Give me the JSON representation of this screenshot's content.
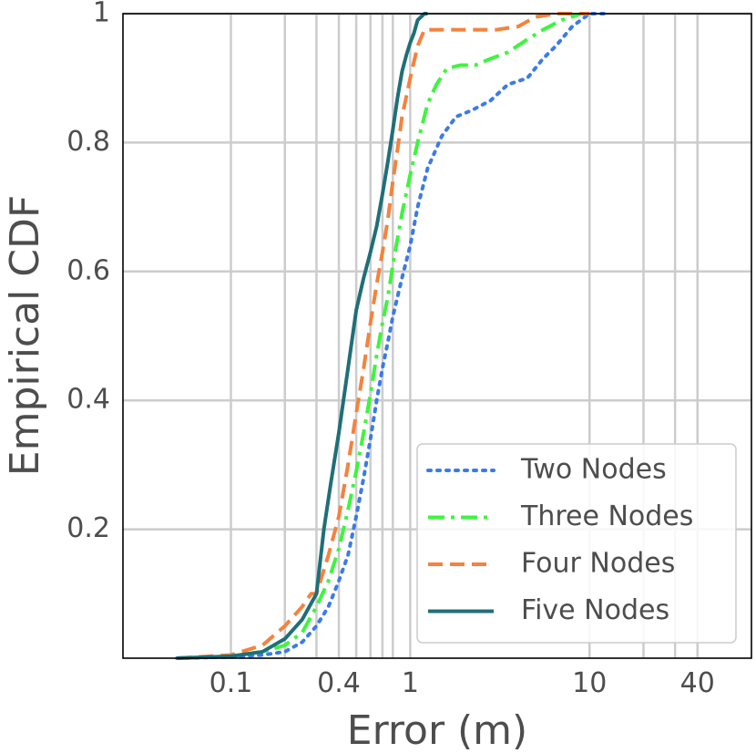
{
  "chart_data": {
    "type": "line",
    "xlabel": "Error (m)",
    "ylabel": "Empirical CDF",
    "xscale": "log",
    "xlim": [
      0.025,
      80
    ],
    "ylim": [
      0,
      1
    ],
    "grid": true,
    "legend_position": "bottom-right",
    "x_ticks": [
      {
        "value": 0.1,
        "label": "0.1"
      },
      {
        "value": 0.4,
        "label": "0.4"
      },
      {
        "value": 1,
        "label": "1"
      },
      {
        "value": 10,
        "label": "10"
      },
      {
        "value": 40,
        "label": "40"
      }
    ],
    "x_minor_grid": [
      0.2,
      0.3,
      0.5,
      0.6,
      0.7,
      0.8,
      20,
      30
    ],
    "y_ticks": [
      {
        "value": 0.2,
        "label": "0.2"
      },
      {
        "value": 0.4,
        "label": "0.4"
      },
      {
        "value": 0.6,
        "label": "0.6"
      },
      {
        "value": 0.8,
        "label": "0.8"
      },
      {
        "value": 1,
        "label": "1"
      }
    ],
    "series": [
      {
        "name": "Two Nodes",
        "color": "#3b7be8",
        "dash": "dotted",
        "x": [
          0.05,
          0.1,
          0.15,
          0.2,
          0.25,
          0.3,
          0.35,
          0.4,
          0.45,
          0.5,
          0.55,
          0.6,
          0.65,
          0.7,
          0.75,
          0.8,
          0.9,
          1.0,
          1.1,
          1.25,
          1.5,
          1.8,
          2.2,
          2.8,
          3.5,
          4.5,
          5.5,
          6.5,
          8,
          10,
          12
        ],
        "y": [
          0,
          0.002,
          0.005,
          0.01,
          0.025,
          0.05,
          0.08,
          0.12,
          0.16,
          0.22,
          0.28,
          0.34,
          0.4,
          0.45,
          0.49,
          0.53,
          0.59,
          0.64,
          0.7,
          0.76,
          0.81,
          0.84,
          0.85,
          0.865,
          0.89,
          0.9,
          0.93,
          0.95,
          0.98,
          1.0,
          1.0
        ]
      },
      {
        "name": "Three Nodes",
        "color": "#3df53d",
        "dash": "dashdot",
        "x": [
          0.05,
          0.1,
          0.15,
          0.2,
          0.25,
          0.3,
          0.35,
          0.4,
          0.45,
          0.5,
          0.55,
          0.6,
          0.65,
          0.7,
          0.75,
          0.8,
          0.9,
          1.0,
          1.1,
          1.25,
          1.4,
          1.6,
          1.9,
          2.3,
          2.8,
          3.5,
          4.5,
          5.5,
          7,
          9,
          10
        ],
        "y": [
          0,
          0.003,
          0.01,
          0.02,
          0.04,
          0.08,
          0.12,
          0.17,
          0.23,
          0.29,
          0.35,
          0.41,
          0.47,
          0.52,
          0.56,
          0.61,
          0.69,
          0.75,
          0.8,
          0.86,
          0.89,
          0.915,
          0.92,
          0.92,
          0.93,
          0.94,
          0.96,
          0.975,
          0.99,
          1.0,
          1.0
        ]
      },
      {
        "name": "Four Nodes",
        "color": "#f5823d",
        "dash": "dashed",
        "x": [
          0.05,
          0.1,
          0.15,
          0.2,
          0.25,
          0.28,
          0.3,
          0.35,
          0.4,
          0.45,
          0.5,
          0.55,
          0.6,
          0.65,
          0.7,
          0.75,
          0.8,
          0.85,
          0.9,
          1.0,
          1.1,
          1.2,
          1.4,
          1.7,
          2.2,
          3.0,
          4.0,
          5.0,
          6.5,
          8,
          10
        ],
        "y": [
          0,
          0.005,
          0.02,
          0.05,
          0.08,
          0.1,
          0.1,
          0.16,
          0.22,
          0.3,
          0.38,
          0.45,
          0.52,
          0.58,
          0.63,
          0.68,
          0.74,
          0.79,
          0.84,
          0.9,
          0.95,
          0.975,
          0.975,
          0.975,
          0.975,
          0.975,
          0.98,
          0.995,
          1.0,
          1.0,
          1.0
        ]
      },
      {
        "name": "Five Nodes",
        "color": "#1f6f78",
        "dash": "solid",
        "x": [
          0.05,
          0.1,
          0.15,
          0.2,
          0.25,
          0.28,
          0.3,
          0.33,
          0.36,
          0.4,
          0.45,
          0.5,
          0.55,
          0.6,
          0.65,
          0.7,
          0.75,
          0.8,
          0.85,
          0.9,
          0.95,
          1.0,
          1.05,
          1.1,
          1.2,
          1.25
        ],
        "y": [
          0,
          0.003,
          0.01,
          0.03,
          0.06,
          0.085,
          0.1,
          0.2,
          0.27,
          0.35,
          0.45,
          0.54,
          0.59,
          0.63,
          0.67,
          0.72,
          0.77,
          0.82,
          0.87,
          0.91,
          0.935,
          0.955,
          0.97,
          0.99,
          1.0,
          1.0
        ]
      }
    ]
  }
}
